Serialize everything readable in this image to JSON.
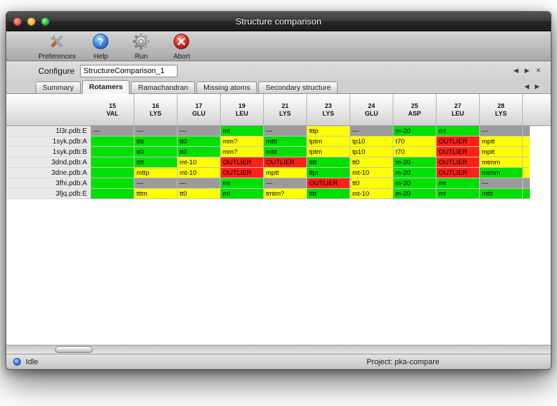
{
  "window": {
    "title": "Structure comparison"
  },
  "toolbar": {
    "items": [
      {
        "label": "Preferences",
        "icon": "preferences-tools-icon"
      },
      {
        "label": "Help",
        "icon": "help-icon"
      },
      {
        "label": "Run",
        "icon": "run-gear-icon"
      },
      {
        "label": "Abort",
        "icon": "abort-icon"
      }
    ]
  },
  "configure": {
    "label": "Configure",
    "value": "StructureComparison_1"
  },
  "tabs": {
    "items": [
      "Summary",
      "Rotamers",
      "Ramachandran",
      "Missing atoms",
      "Secondary structure"
    ],
    "active": "Rotamers"
  },
  "icons": {
    "prev": "◀",
    "next": "▶",
    "close": "✕"
  },
  "colors": {
    "green": "#00e000",
    "yellow": "#ffff00",
    "red": "#ff2116",
    "gray": "#9b9b9b"
  },
  "table": {
    "columns": [
      {
        "num": "15",
        "res": "VAL"
      },
      {
        "num": "16",
        "res": "LYS"
      },
      {
        "num": "17",
        "res": "GLU"
      },
      {
        "num": "19",
        "res": "LEU"
      },
      {
        "num": "21",
        "res": "LYS"
      },
      {
        "num": "23",
        "res": "LYS"
      },
      {
        "num": "24",
        "res": "GLU"
      },
      {
        "num": "25",
        "res": "ASP"
      },
      {
        "num": "27",
        "res": "LEU"
      },
      {
        "num": "28",
        "res": "LYS"
      }
    ],
    "rows": [
      {
        "name": "1l3r.pdb:E",
        "cells": [
          {
            "t": "---",
            "c": "gray"
          },
          {
            "t": "---",
            "c": "gray"
          },
          {
            "t": "---",
            "c": "gray"
          },
          {
            "t": "mt",
            "c": "green"
          },
          {
            "t": "---",
            "c": "gray"
          },
          {
            "t": "tttp",
            "c": "yellow"
          },
          {
            "t": "---",
            "c": "gray"
          },
          {
            "t": "m-20",
            "c": "green"
          },
          {
            "t": "mt",
            "c": "green"
          },
          {
            "t": "---",
            "c": "gray"
          }
        ]
      },
      {
        "name": "1syk.pdb:A",
        "cells": [
          {
            "t": "",
            "c": "green"
          },
          {
            "t": "tttt",
            "c": "green"
          },
          {
            "t": "tt0",
            "c": "green"
          },
          {
            "t": "mm?",
            "c": "yellow"
          },
          {
            "t": "mttt",
            "c": "green"
          },
          {
            "t": "tptm",
            "c": "yellow"
          },
          {
            "t": "tp10",
            "c": "yellow"
          },
          {
            "t": "t70",
            "c": "yellow"
          },
          {
            "t": "OUTLIER",
            "c": "red"
          },
          {
            "t": "mptt",
            "c": "yellow"
          }
        ]
      },
      {
        "name": "1syk.pdb:B",
        "cells": [
          {
            "t": "",
            "c": "green"
          },
          {
            "t": "tt0",
            "c": "green"
          },
          {
            "t": "tt0",
            "c": "green"
          },
          {
            "t": "mm?",
            "c": "yellow"
          },
          {
            "t": "mttt",
            "c": "green"
          },
          {
            "t": "tptm",
            "c": "yellow"
          },
          {
            "t": "tp10",
            "c": "yellow"
          },
          {
            "t": "t70",
            "c": "yellow"
          },
          {
            "t": "OUTLIER",
            "c": "red"
          },
          {
            "t": "mptt",
            "c": "yellow"
          }
        ]
      },
      {
        "name": "3dnd.pdb:A",
        "cells": [
          {
            "t": "",
            "c": "green"
          },
          {
            "t": "tttt",
            "c": "green"
          },
          {
            "t": "mt-10",
            "c": "yellow"
          },
          {
            "t": "OUTLIER",
            "c": "red"
          },
          {
            "t": "OUTLIER",
            "c": "red"
          },
          {
            "t": "tttt",
            "c": "green"
          },
          {
            "t": "tt0",
            "c": "yellow"
          },
          {
            "t": "m-20",
            "c": "green"
          },
          {
            "t": "OUTLIER",
            "c": "red"
          },
          {
            "t": "mtmm",
            "c": "yellow"
          }
        ]
      },
      {
        "name": "3dne.pdb:A",
        "cells": [
          {
            "t": "",
            "c": "green"
          },
          {
            "t": "mttp",
            "c": "yellow"
          },
          {
            "t": "mt-10",
            "c": "yellow"
          },
          {
            "t": "OUTLIER",
            "c": "red"
          },
          {
            "t": "mptt",
            "c": "yellow"
          },
          {
            "t": "ttpt",
            "c": "green"
          },
          {
            "t": "mt-10",
            "c": "yellow"
          },
          {
            "t": "m-20",
            "c": "green"
          },
          {
            "t": "OUTLIER",
            "c": "red"
          },
          {
            "t": "mtmm",
            "c": "green"
          }
        ]
      },
      {
        "name": "3fhi.pdb:A",
        "cells": [
          {
            "t": "",
            "c": "green"
          },
          {
            "t": "---",
            "c": "gray"
          },
          {
            "t": "---",
            "c": "gray"
          },
          {
            "t": "mt",
            "c": "green"
          },
          {
            "t": "---",
            "c": "gray"
          },
          {
            "t": "OUTLIER",
            "c": "red"
          },
          {
            "t": "tt0",
            "c": "yellow"
          },
          {
            "t": "m-20",
            "c": "green"
          },
          {
            "t": "mt",
            "c": "green"
          },
          {
            "t": "---",
            "c": "gray"
          }
        ]
      },
      {
        "name": "3fjq.pdb:E",
        "cells": [
          {
            "t": "",
            "c": "green"
          },
          {
            "t": "tttm",
            "c": "yellow"
          },
          {
            "t": "tt0",
            "c": "yellow"
          },
          {
            "t": "mt",
            "c": "green"
          },
          {
            "t": "tmtm?",
            "c": "yellow"
          },
          {
            "t": "tttt",
            "c": "green"
          },
          {
            "t": "mt-10",
            "c": "yellow"
          },
          {
            "t": "m-20",
            "c": "green"
          },
          {
            "t": "mt",
            "c": "green"
          },
          {
            "t": "mttt",
            "c": "green"
          }
        ]
      }
    ],
    "partial_column": [
      "gray",
      "yellow",
      "yellow",
      "yellow",
      "yellow",
      "gray",
      "green"
    ]
  },
  "status": {
    "state": "Idle",
    "project": "Project: pka-compare"
  }
}
